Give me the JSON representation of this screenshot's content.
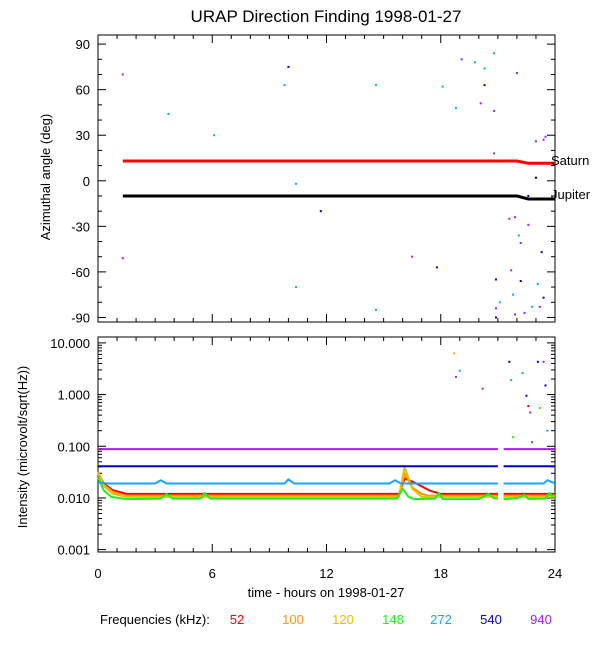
{
  "chart_data": [
    {
      "type": "scatter",
      "title": "URAP Direction Finding  1998-01-27",
      "ylabel": "Azimuthal angle (deg)",
      "ylim": [
        -93,
        96
      ],
      "xlim": [
        0,
        24
      ],
      "yticks": [
        "90",
        "60",
        "30",
        "0",
        "-30",
        "-60",
        "-90"
      ],
      "ytick_values": [
        90,
        60,
        30,
        0,
        -30,
        -60,
        -90
      ],
      "lines": [
        {
          "name": "Saturn",
          "color": "#ff0000",
          "points": [
            [
              1.3,
              13
            ],
            [
              22.0,
              13
            ],
            [
              22.6,
              11.5
            ],
            [
              24,
              11.5
            ]
          ]
        },
        {
          "name": "Jupiter",
          "color": "#000000",
          "points": [
            [
              1.3,
              -10
            ],
            [
              22.0,
              -10
            ],
            [
              22.6,
              -12
            ],
            [
              24,
              -12
            ]
          ]
        }
      ],
      "points": [
        {
          "x": 1.3,
          "y": 70,
          "color": "#a020f0"
        },
        {
          "x": 1.3,
          "y": -51,
          "color": "#a020f0"
        },
        {
          "x": 3.7,
          "y": 44,
          "color": "#00aaff"
        },
        {
          "x": 6.1,
          "y": 30,
          "color": "#00aaff"
        },
        {
          "x": 9.8,
          "y": 63,
          "color": "#00aaff"
        },
        {
          "x": 10.0,
          "y": 75,
          "color": "#0000cc"
        },
        {
          "x": 10.4,
          "y": -2,
          "color": "#00aaff"
        },
        {
          "x": 10.4,
          "y": -70,
          "color": "#00aaff"
        },
        {
          "x": 11.7,
          "y": -20,
          "color": "#0000cc"
        },
        {
          "x": 14.6,
          "y": 63,
          "color": "#00aaff"
        },
        {
          "x": 14.6,
          "y": -85,
          "color": "#00aaff"
        },
        {
          "x": 16.5,
          "y": -50,
          "color": "#a020f0"
        },
        {
          "x": 17.8,
          "y": -57,
          "color": "#0000cc"
        },
        {
          "x": 18.1,
          "y": 62,
          "color": "#00aaff"
        },
        {
          "x": 18.8,
          "y": 48,
          "color": "#00aaff"
        },
        {
          "x": 19.1,
          "y": 80,
          "color": "#a020f0"
        },
        {
          "x": 19.8,
          "y": 78,
          "color": "#00aaff"
        },
        {
          "x": 20.1,
          "y": 51,
          "color": "#a020f0"
        },
        {
          "x": 20.3,
          "y": 63,
          "color": "#0000cc"
        },
        {
          "x": 20.3,
          "y": 74,
          "color": "#00aaff"
        },
        {
          "x": 20.8,
          "y": 84,
          "color": "#00aaff"
        },
        {
          "x": 20.8,
          "y": 46,
          "color": "#a020f0"
        },
        {
          "x": 20.8,
          "y": 18,
          "color": "#a020f0"
        },
        {
          "x": 20.9,
          "y": -65,
          "color": "#0000cc"
        },
        {
          "x": 20.9,
          "y": -84,
          "color": "#a020f0"
        },
        {
          "x": 20.9,
          "y": -90,
          "color": "#0000cc"
        },
        {
          "x": 21.1,
          "y": -80,
          "color": "#00aaff"
        },
        {
          "x": 21.6,
          "y": -25,
          "color": "#a020f0"
        },
        {
          "x": 21.7,
          "y": -59,
          "color": "#a020f0"
        },
        {
          "x": 21.8,
          "y": -75,
          "color": "#00aaff"
        },
        {
          "x": 21.9,
          "y": -24,
          "color": "#a020f0"
        },
        {
          "x": 21.9,
          "y": -88,
          "color": "#a020f0"
        },
        {
          "x": 22.0,
          "y": 71,
          "color": "#a020f0"
        },
        {
          "x": 22.1,
          "y": -36,
          "color": "#00aaff"
        },
        {
          "x": 22.2,
          "y": -41,
          "color": "#a020f0"
        },
        {
          "x": 22.2,
          "y": -66,
          "color": "#0000cc"
        },
        {
          "x": 22.4,
          "y": -87,
          "color": "#a020f0"
        },
        {
          "x": 22.6,
          "y": -10,
          "color": "#0000cc"
        },
        {
          "x": 22.6,
          "y": -29,
          "color": "#a020f0"
        },
        {
          "x": 22.8,
          "y": -83,
          "color": "#00aaff"
        },
        {
          "x": 23.0,
          "y": 26,
          "color": "#a020f0"
        },
        {
          "x": 23.0,
          "y": 2,
          "color": "#000000"
        },
        {
          "x": 23.1,
          "y": -68,
          "color": "#00aaff"
        },
        {
          "x": 23.2,
          "y": -83,
          "color": "#a020f0"
        },
        {
          "x": 23.3,
          "y": -47,
          "color": "#0000cc"
        },
        {
          "x": 23.4,
          "y": -77,
          "color": "#0000cc"
        },
        {
          "x": 23.4,
          "y": 27,
          "color": "#a020f0"
        },
        {
          "x": 23.5,
          "y": 29,
          "color": "#a020f0"
        }
      ]
    },
    {
      "type": "line",
      "ylabel": "Intensity (microvolt/sqrt(Hz))",
      "xlabel": "time - hours on 1998-01-27",
      "yscale": "log",
      "ylim": [
        0.0009,
        13
      ],
      "xlim": [
        0,
        24
      ],
      "yticks": [
        "10.000",
        "1.000",
        "0.100",
        "0.010",
        "0.001"
      ],
      "ytick_values": [
        10,
        1,
        0.1,
        0.01,
        0.001
      ],
      "xticks": [
        "0",
        "6",
        "12",
        "18",
        "24"
      ],
      "xtick_values": [
        0,
        6,
        12,
        18,
        24
      ],
      "gap": [
        21.0,
        21.3
      ],
      "series": [
        {
          "name": "52",
          "color": "#ff0000",
          "values": [
            [
              0,
              0.03
            ],
            [
              0.3,
              0.019
            ],
            [
              0.8,
              0.014
            ],
            [
              1.5,
              0.012
            ],
            [
              15.8,
              0.012
            ],
            [
              16.1,
              0.024
            ],
            [
              16.6,
              0.02
            ],
            [
              17.4,
              0.014
            ],
            [
              18.0,
              0.012
            ],
            [
              21.0,
              0.012
            ],
            [
              21.3,
              0.012
            ],
            [
              24,
              0.012
            ]
          ]
        },
        {
          "name": "100",
          "color": "#ff9900",
          "values": [
            [
              0,
              0.032
            ],
            [
              0.3,
              0.018
            ],
            [
              0.8,
              0.013
            ],
            [
              1.5,
              0.011
            ],
            [
              15.8,
              0.011
            ],
            [
              16.1,
              0.03
            ],
            [
              16.5,
              0.016
            ],
            [
              17.0,
              0.012
            ],
            [
              17.4,
              0.011
            ],
            [
              21.0,
              0.011
            ],
            [
              21.3,
              0.011
            ],
            [
              24,
              0.011
            ]
          ]
        },
        {
          "name": "120",
          "color": "#e6c000",
          "values": [
            [
              0,
              0.03
            ],
            [
              0.3,
              0.017
            ],
            [
              0.8,
              0.012
            ],
            [
              1.5,
              0.0105
            ],
            [
              15.8,
              0.0105
            ],
            [
              16.1,
              0.04
            ],
            [
              16.5,
              0.015
            ],
            [
              17.0,
              0.0105
            ],
            [
              21.0,
              0.0105
            ],
            [
              21.3,
              0.0105
            ],
            [
              24,
              0.0105
            ]
          ]
        },
        {
          "name": "148",
          "color": "#22ee22",
          "values": [
            [
              0,
              0.025
            ],
            [
              0.3,
              0.014
            ],
            [
              0.7,
              0.0105
            ],
            [
              1.5,
              0.0095
            ],
            [
              3.3,
              0.0097
            ],
            [
              3.6,
              0.012
            ],
            [
              3.9,
              0.0097
            ],
            [
              5.4,
              0.0097
            ],
            [
              5.6,
              0.0125
            ],
            [
              5.9,
              0.0097
            ],
            [
              15.7,
              0.0097
            ],
            [
              16.0,
              0.015
            ],
            [
              16.3,
              0.0105
            ],
            [
              16.6,
              0.0095
            ],
            [
              17.7,
              0.0097
            ],
            [
              17.9,
              0.0125
            ],
            [
              18.1,
              0.0095
            ],
            [
              20.0,
              0.0095
            ],
            [
              20.5,
              0.012
            ],
            [
              20.8,
              0.0098
            ],
            [
              21.0,
              0.0097
            ],
            [
              21.3,
              0.0095
            ],
            [
              22.0,
              0.0098
            ],
            [
              22.4,
              0.0115
            ],
            [
              22.6,
              0.0096
            ],
            [
              23.5,
              0.0097
            ],
            [
              23.7,
              0.0125
            ],
            [
              24,
              0.0098
            ]
          ]
        },
        {
          "name": "272",
          "color": "#1aa3ff",
          "values": [
            [
              0,
              0.02
            ],
            [
              0.5,
              0.019
            ],
            [
              3.0,
              0.019
            ],
            [
              3.3,
              0.022
            ],
            [
              3.6,
              0.019
            ],
            [
              9.8,
              0.019
            ],
            [
              10.0,
              0.023
            ],
            [
              10.3,
              0.019
            ],
            [
              15.3,
              0.019
            ],
            [
              15.6,
              0.022
            ],
            [
              15.9,
              0.019
            ],
            [
              21.0,
              0.019
            ],
            [
              21.3,
              0.019
            ],
            [
              23.4,
              0.019
            ],
            [
              23.6,
              0.022
            ],
            [
              24,
              0.019
            ]
          ]
        },
        {
          "name": "540",
          "color": "#0000cc",
          "values": [
            [
              0,
              0.041
            ],
            [
              5.0,
              0.041
            ],
            [
              10.0,
              0.041
            ],
            [
              15.0,
              0.041
            ],
            [
              21.0,
              0.041
            ],
            [
              21.3,
              0.041
            ],
            [
              24,
              0.041
            ]
          ]
        },
        {
          "name": "940",
          "color": "#a020f0",
          "values": [
            [
              0,
              0.088
            ],
            [
              6.0,
              0.088
            ],
            [
              12.0,
              0.088
            ],
            [
              18.0,
              0.088
            ],
            [
              21.0,
              0.088
            ],
            [
              21.3,
              0.088
            ],
            [
              24,
              0.088
            ]
          ]
        }
      ],
      "points": [
        {
          "x": 18.7,
          "y": 6.3,
          "color": "#e6c000"
        },
        {
          "x": 18.8,
          "y": 2.2,
          "color": "#a020f0"
        },
        {
          "x": 19.0,
          "y": 2.9,
          "color": "#1aa3ff"
        },
        {
          "x": 20.2,
          "y": 1.3,
          "color": "#a020f0"
        },
        {
          "x": 21.6,
          "y": 4.3,
          "color": "#0000cc"
        },
        {
          "x": 21.7,
          "y": 1.9,
          "color": "#1aa3ff"
        },
        {
          "x": 21.8,
          "y": 0.15,
          "color": "#22ee22"
        },
        {
          "x": 22.3,
          "y": 2.6,
          "color": "#1aa3ff"
        },
        {
          "x": 22.5,
          "y": 0.95,
          "color": "#0000cc"
        },
        {
          "x": 22.6,
          "y": 0.6,
          "color": "#ff0000"
        },
        {
          "x": 22.7,
          "y": 0.45,
          "color": "#a020f0"
        },
        {
          "x": 22.8,
          "y": 0.12,
          "color": "#a020f0"
        },
        {
          "x": 23.1,
          "y": 4.3,
          "color": "#0000cc"
        },
        {
          "x": 23.2,
          "y": 0.55,
          "color": "#22ee22"
        },
        {
          "x": 23.4,
          "y": 4.3,
          "color": "#a020f0"
        },
        {
          "x": 23.5,
          "y": 1.5,
          "color": "#0000cc"
        },
        {
          "x": 23.6,
          "y": 0.2,
          "color": "#1aa3ff"
        }
      ]
    }
  ],
  "labels": {
    "saturn": "Saturn",
    "jupiter": "Jupiter"
  },
  "legend": {
    "title": "Frequencies (kHz):",
    "entries": [
      {
        "label": "52",
        "color": "#ff0000"
      },
      {
        "label": "100",
        "color": "#ff9900"
      },
      {
        "label": "120",
        "color": "#e6c000"
      },
      {
        "label": "148",
        "color": "#22ee22"
      },
      {
        "label": "272",
        "color": "#1aa3ff"
      },
      {
        "label": "540",
        "color": "#0000cc"
      },
      {
        "label": "940",
        "color": "#a020f0"
      }
    ]
  }
}
